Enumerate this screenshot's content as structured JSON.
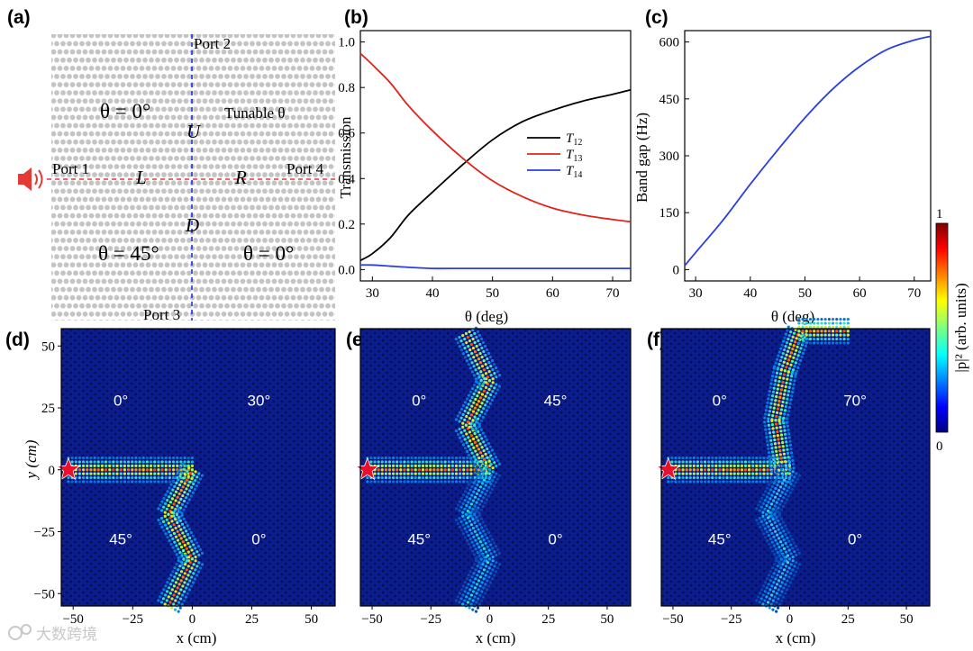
{
  "chart_data": [
    {
      "panel": "(a)",
      "type": "diagram",
      "port_labels": [
        "Port 1",
        "Port 2",
        "Port 3",
        "Port 4"
      ],
      "direction_labels": [
        "U",
        "L",
        "R",
        "D"
      ],
      "domain_labels": {
        "top_left": "θ = 0°",
        "top_right": "Tunable θ",
        "bottom_left": "θ = 45°",
        "bottom_right": "θ = 0°"
      },
      "colors": {
        "horizontal_line": "#e53935",
        "vertical_line": "#2233dd",
        "speaker": "#e53935",
        "lattice": "#c4c4c4"
      }
    },
    {
      "panel": "(b)",
      "type": "line",
      "xlabel": "θ (deg)",
      "ylabel": "Transmission",
      "xlim": [
        28,
        73
      ],
      "ylim": [
        -0.05,
        1.05
      ],
      "xticks": [
        30,
        40,
        50,
        60,
        70
      ],
      "yticks": [
        "0.0",
        "0.2",
        "0.4",
        "0.6",
        "0.8",
        "1.0"
      ],
      "x": [
        28,
        30,
        33,
        36,
        40,
        45,
        50,
        55,
        60,
        65,
        70,
        73
      ],
      "series": [
        {
          "name": "T12",
          "sub": "12",
          "color": "#000000",
          "values": [
            0.04,
            0.07,
            0.14,
            0.24,
            0.34,
            0.46,
            0.57,
            0.65,
            0.7,
            0.74,
            0.77,
            0.79
          ]
        },
        {
          "name": "T13",
          "sub": "13",
          "color": "#e0241b",
          "values": [
            0.95,
            0.9,
            0.82,
            0.72,
            0.61,
            0.49,
            0.39,
            0.32,
            0.27,
            0.24,
            0.22,
            0.21
          ]
        },
        {
          "name": "T14",
          "sub": "14",
          "color": "#2a3fe0",
          "values": [
            0.02,
            0.02,
            0.015,
            0.01,
            0.005,
            0.005,
            0.005,
            0.005,
            0.005,
            0.005,
            0.005,
            0.005
          ]
        }
      ],
      "legend_position": "center-right"
    },
    {
      "panel": "(c)",
      "type": "line",
      "xlabel": "θ (deg)",
      "ylabel": "Band gap (Hz)",
      "xlim": [
        28,
        73
      ],
      "ylim": [
        -30,
        630
      ],
      "xticks": [
        30,
        40,
        50,
        60,
        70
      ],
      "yticks": [
        "0",
        "150",
        "300",
        "450",
        "600"
      ],
      "x": [
        28,
        30,
        35,
        40,
        45,
        50,
        55,
        60,
        65,
        70,
        73
      ],
      "series": [
        {
          "name": "Band gap",
          "color": "#2a3fe0",
          "values": [
            10,
            45,
            130,
            225,
            315,
            400,
            475,
            535,
            580,
            605,
            615
          ]
        }
      ]
    },
    {
      "panel": "(d)",
      "type": "heatmap",
      "xlabel": "x (cm)",
      "ylabel": "y (cm)",
      "xlim": [
        -55,
        60
      ],
      "ylim": [
        -55,
        57
      ],
      "xticks": [
        "−50",
        "−25",
        "0",
        "25",
        "50"
      ],
      "yticks": [
        "50",
        "25",
        "0",
        "−25",
        "−50"
      ],
      "angles": {
        "top_left": "0°",
        "top_right": "30°",
        "bottom_left": "45°",
        "bottom_right": "0°"
      },
      "path": "down"
    },
    {
      "panel": "(e)",
      "type": "heatmap",
      "xlabel": "x (cm)",
      "xlim": [
        -55,
        60
      ],
      "ylim": [
        -55,
        57
      ],
      "xticks": [
        "−50",
        "−25",
        "0",
        "25",
        "50"
      ],
      "angles": {
        "top_left": "0°",
        "top_right": "45°",
        "bottom_left": "45°",
        "bottom_right": "0°"
      },
      "path": "split"
    },
    {
      "panel": "(f)",
      "type": "heatmap",
      "xlabel": "x (cm)",
      "xlim": [
        -55,
        60
      ],
      "ylim": [
        -55,
        57
      ],
      "xticks": [
        "−50",
        "−25",
        "0",
        "25",
        "50"
      ],
      "angles": {
        "top_left": "0°",
        "top_right": "70°",
        "bottom_left": "45°",
        "bottom_right": "0°"
      },
      "path": "up"
    }
  ],
  "colorbar": {
    "label": "|p|² (arb. units)",
    "max": "1",
    "min": "0"
  },
  "watermark": "大数跨境",
  "colors": {
    "field_bg": "#0a1a8a",
    "hot": "#ff2a00",
    "star": "#e8102a"
  }
}
